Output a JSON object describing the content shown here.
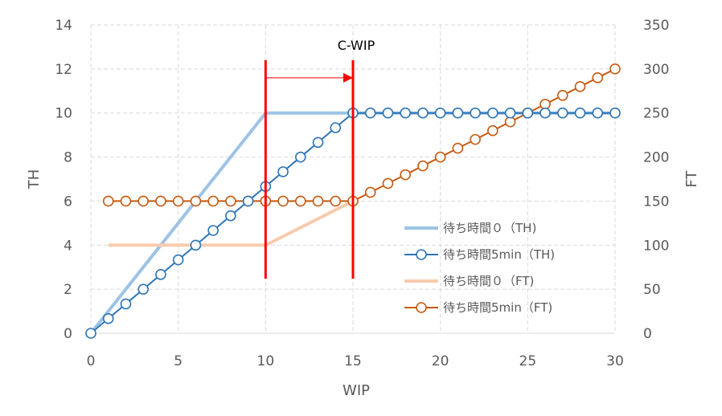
{
  "chart_data": {
    "type": "line",
    "title": "",
    "xlabel": "WIP",
    "ylabel": "TH",
    "y2label": "FT",
    "xlim": [
      0,
      30
    ],
    "ylim": [
      0,
      14
    ],
    "y2lim": [
      0,
      350
    ],
    "x_ticks": [
      0,
      5,
      10,
      15,
      20,
      25,
      30
    ],
    "y_ticks": [
      0,
      2,
      4,
      6,
      8,
      10,
      12,
      14
    ],
    "y2_ticks": [
      0,
      50,
      100,
      150,
      200,
      250,
      300,
      350
    ],
    "grid": true,
    "legend_position": "bottom-right",
    "series": [
      {
        "name": "待ち時間０（TH)",
        "axis": "left",
        "color": "#9dc3e6",
        "marker": "none",
        "x": [
          0,
          10,
          30
        ],
        "y": [
          0,
          10,
          10
        ]
      },
      {
        "name": "待ち時間5min（TH)",
        "axis": "left",
        "color": "#2e75b6",
        "marker": "circle",
        "x": [
          0,
          1,
          2,
          3,
          4,
          5,
          6,
          7,
          8,
          9,
          10,
          11,
          12,
          13,
          14,
          15,
          16,
          17,
          18,
          19,
          20,
          21,
          22,
          23,
          24,
          25,
          26,
          27,
          28,
          29,
          30
        ],
        "y": [
          0,
          0.667,
          1.333,
          2,
          2.667,
          3.333,
          4,
          4.667,
          5.333,
          6,
          6.667,
          7.333,
          8,
          8.667,
          9.333,
          10,
          10,
          10,
          10,
          10,
          10,
          10,
          10,
          10,
          10,
          10,
          10,
          10,
          10,
          10,
          10
        ]
      },
      {
        "name": "待ち時間０（FT)",
        "axis": "right",
        "color": "#f8cbad",
        "marker": "none",
        "x": [
          1,
          10,
          15
        ],
        "y": [
          100,
          100,
          150
        ]
      },
      {
        "name": "待ち時間5min（FT)",
        "axis": "right",
        "color": "#c55a11",
        "marker": "circle",
        "x": [
          1,
          2,
          3,
          4,
          5,
          6,
          7,
          8,
          9,
          10,
          11,
          12,
          13,
          14,
          15,
          16,
          17,
          18,
          19,
          20,
          21,
          22,
          23,
          24,
          25,
          26,
          27,
          28,
          29,
          30
        ],
        "y": [
          150,
          150,
          150,
          150,
          150,
          150,
          150,
          150,
          150,
          150,
          150,
          150,
          150,
          150,
          150,
          160,
          170,
          180,
          190,
          200,
          210,
          220,
          230,
          240,
          250,
          260,
          270,
          280,
          290,
          300
        ]
      }
    ],
    "annotations": {
      "label": "C-WIP",
      "vlines_x": [
        10,
        15
      ],
      "vline_color": "#ff0000",
      "arrow_from_x": 10,
      "arrow_to_x": 15,
      "arrow_y": 11.6
    }
  }
}
